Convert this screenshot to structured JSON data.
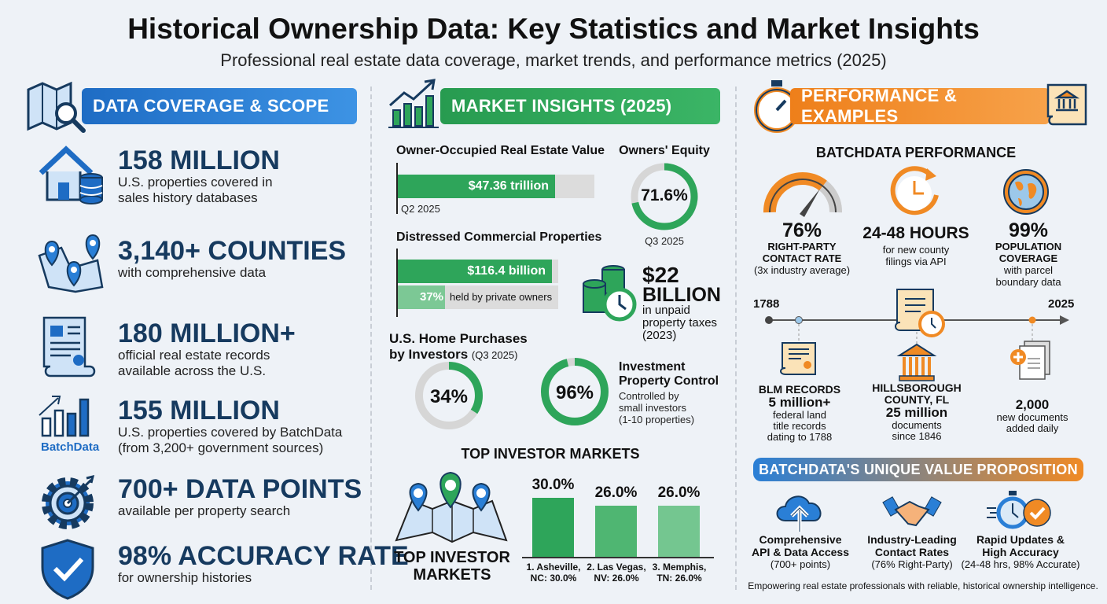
{
  "header": {
    "title": "Historical Ownership Data: Key Statistics and Market Insights",
    "subtitle": "Professional real estate data coverage, market trends, and performance metrics (2025)"
  },
  "colors": {
    "blue": "#2a7fd6",
    "green": "#2ea55a",
    "orange": "#f08a24",
    "navy": "#163a5f"
  },
  "left": {
    "banner": "DATA COVERAGE & SCOPE",
    "items": [
      {
        "icon": "house-database-icon",
        "title": "158 MILLION",
        "sub": [
          "U.S. properties covered in",
          "sales history databases"
        ]
      },
      {
        "icon": "map-pins-icon",
        "title": "3,140+ COUNTIES",
        "sub": [
          "with comprehensive data"
        ]
      },
      {
        "icon": "document-scroll-icon",
        "title": "180 MILLION+",
        "sub": [
          "official real estate records",
          "available across the U.S."
        ]
      },
      {
        "icon": "batchdata-chart-icon",
        "title": "155 MILLION",
        "sub": [
          "U.S. properties covered by BatchData",
          "(from 3,200+ government sources)"
        ],
        "logo": "BatchData"
      },
      {
        "icon": "gear-target-icon",
        "title": "700+ DATA POINTS",
        "sub": [
          "available per property search"
        ]
      },
      {
        "icon": "shield-check-icon",
        "title": "98% ACCURACY RATE",
        "sub": [
          "for ownership histories"
        ]
      }
    ]
  },
  "middle": {
    "banner": "MARKET INSIGHTS (2025)",
    "owner_value": {
      "title": "Owner-Occupied Real Estate Value",
      "value": "$47.36 trillion",
      "period": "Q2 2025"
    },
    "equity": {
      "title": "Owners' Equity",
      "value": "71.6%",
      "period": "Q3 2025"
    },
    "distressed": {
      "title": "Distressed Commercial Properties",
      "value": "$116.4 billion",
      "private_pct": "37%",
      "private_label": "held by private owners"
    },
    "taxes": {
      "value": "$22",
      "unit": "BILLION",
      "desc": [
        "in unpaid",
        "property taxes",
        "(2023)"
      ]
    },
    "investor_purchases": {
      "title1": "U.S. Home Purchases",
      "title2": "by Investors",
      "period": "(Q3 2025)",
      "value": "34%"
    },
    "control": {
      "value": "96%",
      "title": [
        "Investment",
        "Property Control"
      ],
      "desc": [
        "Controlled by",
        "small investors",
        "(1-10 properties)"
      ]
    },
    "markets": {
      "heading": "TOP INVESTOR MARKETS",
      "map_label": [
        "TOP INVESTOR",
        "MARKETS"
      ]
    }
  },
  "chart_data": [
    {
      "type": "bar",
      "title": "TOP INVESTOR MARKETS",
      "categories": [
        "1. Asheville, NC: 30.0%",
        "2. Las Vegas, NV: 26.0%",
        "3. Memphis, TN: 26.0%"
      ],
      "category_lines": [
        [
          "1. Asheville,",
          "NC: 30.0%"
        ],
        [
          "2. Las Vegas,",
          "NV: 26.0%"
        ],
        [
          "3. Memphis,",
          "TN: 26.0%"
        ]
      ],
      "values": [
        30.0,
        26.0,
        26.0
      ],
      "labels": [
        "30.0%",
        "26.0%",
        "26.0%"
      ],
      "colors": [
        "#2ea55a",
        "#4fb672",
        "#74c690"
      ]
    },
    {
      "type": "pie",
      "title": "Owners' Equity",
      "values": [
        71.6
      ],
      "labels": [
        "71.6%"
      ]
    },
    {
      "type": "pie",
      "title": "U.S. Home Purchases by Investors",
      "values": [
        34
      ],
      "labels": [
        "34%"
      ]
    },
    {
      "type": "pie",
      "title": "Investment Property Control",
      "values": [
        96
      ],
      "labels": [
        "96%"
      ]
    }
  ],
  "right": {
    "banner": "PERFORMANCE & EXAMPLES",
    "perf_heading": "BATCHDATA PERFORMANCE",
    "stats": [
      {
        "icon": "gauge-icon",
        "value": "76%",
        "label": [
          "RIGHT-PARTY",
          "CONTACT RATE"
        ],
        "desc": [
          "(3x industry average)"
        ]
      },
      {
        "icon": "clock-refresh-icon",
        "value": "24-48 HOURS",
        "label": [],
        "desc": [
          "for new county",
          "filings via API"
        ]
      },
      {
        "icon": "globe-icon",
        "value": "99%",
        "label": [
          "POPULATION",
          "COVERAGE"
        ],
        "desc": [
          "with parcel",
          "boundary data"
        ]
      }
    ],
    "timeline": {
      "start": "1788",
      "end": "2025"
    },
    "examples": [
      {
        "icon": "certificate-scroll-icon",
        "title": [
          "BLM RECORDS"
        ],
        "value": "5 million+",
        "desc": [
          "federal land",
          "title records",
          "dating to 1788"
        ]
      },
      {
        "icon": "courthouse-icon",
        "title": [
          "HILLSBOROUGH",
          "COUNTY, FL"
        ],
        "value": "25 million",
        "desc": [
          "documents",
          "since 1846"
        ]
      },
      {
        "icon": "add-documents-icon",
        "title": [],
        "value": "2,000",
        "desc": [
          "new documents",
          "added daily"
        ]
      }
    ],
    "value_banner": "BATCHDATA'S UNIQUE VALUE PROPOSITION",
    "values": [
      {
        "icon": "cloud-upload-icon",
        "title": [
          "Comprehensive",
          "API & Data Access"
        ],
        "desc": "(700+ points)"
      },
      {
        "icon": "handshake-icon",
        "title": [
          "Industry-Leading",
          "Contact Rates"
        ],
        "desc": "(76% Right-Party)"
      },
      {
        "icon": "stopwatch-check-icon",
        "title": [
          "Rapid Updates &",
          "High Accuracy"
        ],
        "desc": "(24-48 hrs, 98% Accurate)"
      }
    ],
    "footer": "Empowering real estate professionals with reliable, historical ownership intelligence."
  }
}
